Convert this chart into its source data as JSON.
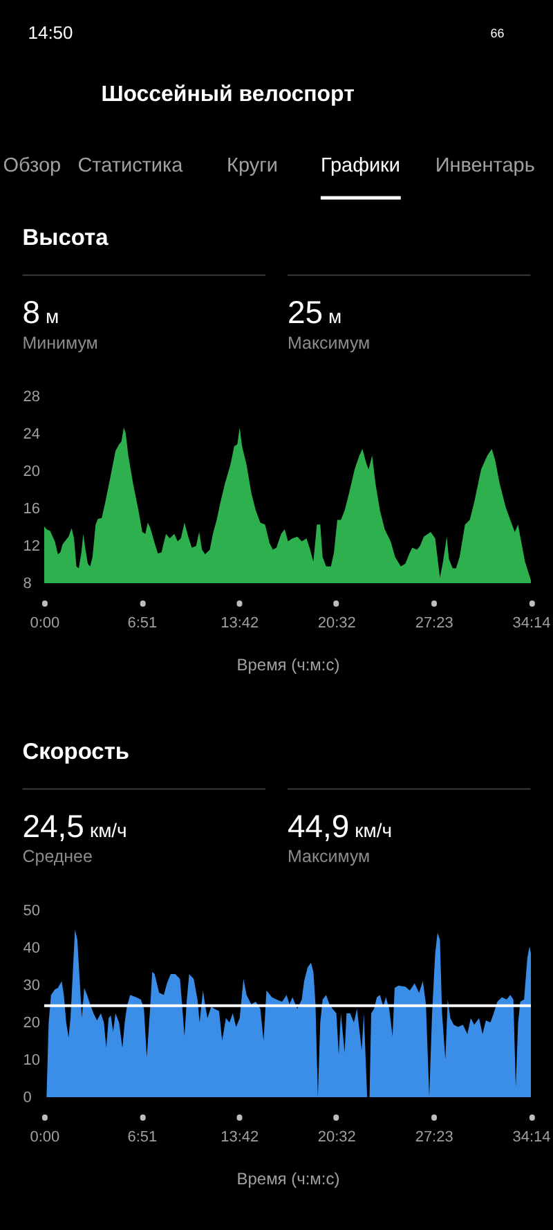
{
  "chart_data": [
    {
      "type": "area",
      "title": "Высота",
      "xlabel": "Время (ч:м:с)",
      "x": [
        0,
        10,
        25,
        45,
        58,
        68,
        78,
        103,
        116,
        126,
        136,
        146,
        157,
        165,
        173,
        184,
        194,
        204,
        217,
        227,
        243,
        258,
        278,
        301,
        316,
        326,
        336,
        344,
        355,
        375,
        398,
        414,
        427,
        437,
        447,
        466,
        480,
        495,
        514,
        530,
        549,
        563,
        577,
        592,
        608,
        623,
        641,
        654,
        666,
        679,
        699,
        712,
        728,
        744,
        763,
        786,
        802,
        815,
        825,
        835,
        854,
        874,
        893,
        912,
        932,
        951,
        965,
        980,
        1000,
        1015,
        1029,
        1048,
        1068,
        1087,
        1107,
        1120,
        1136,
        1151,
        1165,
        1175,
        1190,
        1210,
        1223,
        1237,
        1252,
        1268,
        1287,
        1310,
        1330,
        1343,
        1359,
        1369,
        1384,
        1398,
        1417,
        1437,
        1462,
        1481,
        1505,
        1524,
        1540,
        1553,
        1573,
        1586,
        1602,
        1631,
        1650,
        1670,
        1683,
        1699,
        1708,
        1724,
        1738,
        1753,
        1776,
        1796,
        1815,
        1844,
        1870,
        1889,
        1903,
        1922,
        1947,
        1971,
        1986,
        2000,
        2009,
        2029,
        2048,
        2054
      ],
      "series": [
        {
          "color": "#2eb04f",
          "values": [
            14.1,
            13.8,
            13.6,
            12.5,
            11.1,
            11.3,
            12.2,
            13.0,
            13.9,
            12.8,
            9.8,
            9.6,
            11.3,
            13.3,
            11.8,
            10.1,
            9.8,
            10.8,
            14.3,
            14.9,
            15.0,
            16.7,
            19.2,
            22.2,
            22.9,
            23.2,
            24.7,
            24.1,
            21.7,
            18.7,
            15.8,
            13.5,
            13.3,
            14.5,
            14.0,
            12.3,
            11.2,
            11.3,
            13.3,
            12.8,
            13.3,
            12.5,
            12.8,
            14.5,
            13.0,
            11.8,
            12.0,
            13.5,
            11.6,
            11.1,
            11.6,
            13.3,
            14.8,
            16.7,
            18.7,
            20.7,
            22.7,
            22.9,
            24.7,
            22.7,
            20.7,
            17.7,
            15.8,
            14.5,
            14.3,
            12.3,
            11.6,
            11.8,
            13.3,
            13.8,
            12.5,
            12.8,
            13.0,
            12.5,
            12.8,
            11.8,
            10.3,
            14.3,
            14.3,
            10.8,
            9.8,
            9.8,
            11.3,
            14.8,
            14.8,
            15.8,
            17.7,
            20.2,
            21.7,
            22.4,
            20.9,
            20.2,
            21.7,
            18.7,
            15.8,
            13.8,
            12.5,
            10.8,
            9.8,
            10.1,
            11.1,
            11.8,
            11.6,
            12.0,
            13.0,
            13.5,
            12.8,
            8.6,
            10.3,
            13.0,
            10.6,
            9.6,
            9.6,
            10.8,
            14.3,
            14.8,
            16.7,
            20.2,
            21.7,
            22.4,
            21.2,
            18.7,
            16.2,
            14.5,
            13.5,
            14.3,
            13.0,
            10.3,
            8.8,
            8.3
          ]
        }
      ],
      "xlim": [
        0,
        2054
      ],
      "xticks": [
        {
          "value": 0,
          "label": "0:00"
        },
        {
          "value": 411,
          "label": "6:51"
        },
        {
          "value": 822,
          "label": "13:42"
        },
        {
          "value": 1232,
          "label": "20:32"
        },
        {
          "value": 1643,
          "label": "27:23"
        },
        {
          "value": 2054,
          "label": "34:14"
        }
      ],
      "ylim": [
        8,
        28
      ],
      "yticks": [
        8,
        12,
        16,
        20,
        24,
        28
      ],
      "grid": false,
      "annotations": [
        "14:50",
        "66",
        "Шоссейный велоспорт",
        "Обзор",
        "Статистика",
        "Круги",
        "Графики",
        "Инвентарь",
        "8 м",
        "Минимум",
        "25 м",
        "Максимум"
      ]
    },
    {
      "type": "area",
      "title": "Скорость",
      "xlabel": "Время (ч:м:с)",
      "x": [
        10,
        19,
        29,
        45,
        58,
        74,
        83,
        93,
        103,
        111,
        120,
        130,
        140,
        149,
        159,
        169,
        181,
        194,
        208,
        223,
        239,
        252,
        262,
        272,
        281,
        291,
        301,
        316,
        330,
        340,
        349,
        363,
        388,
        408,
        421,
        433,
        447,
        456,
        466,
        485,
        505,
        518,
        534,
        553,
        573,
        582,
        592,
        602,
        612,
        631,
        647,
        656,
        670,
        679,
        689,
        705,
        718,
        738,
        751,
        767,
        782,
        796,
        810,
        825,
        841,
        854,
        874,
        893,
        912,
        926,
        938,
        961,
        980,
        1004,
        1023,
        1035,
        1048,
        1068,
        1087,
        1097,
        1112,
        1126,
        1136,
        1145,
        1155,
        1165,
        1175,
        1190,
        1204,
        1217,
        1233,
        1243,
        1252,
        1268,
        1276,
        1291,
        1307,
        1320,
        1340,
        1349,
        1363,
        1373,
        1380,
        1392,
        1404,
        1417,
        1431,
        1442,
        1456,
        1470,
        1479,
        1495,
        1524,
        1543,
        1563,
        1582,
        1598,
        1611,
        1625,
        1637,
        1650,
        1660,
        1670,
        1679,
        1693,
        1703,
        1714,
        1728,
        1747,
        1767,
        1786,
        1800,
        1815,
        1835,
        1850,
        1864,
        1883,
        1897,
        1912,
        1932,
        1951,
        1967,
        1980,
        1990,
        2000,
        2009,
        2025,
        2039,
        2048,
        2054
      ],
      "series": [
        {
          "color": "#3a8ee8",
          "values": [
            0,
            20.0,
            27.4,
            28.9,
            29.3,
            31.1,
            27.4,
            20.0,
            16.0,
            21.2,
            32.3,
            44.9,
            42.2,
            32.3,
            21.2,
            29.3,
            27.4,
            24.9,
            22.5,
            20.6,
            22.5,
            20.0,
            13.2,
            21.2,
            21.9,
            17.5,
            22.5,
            20.0,
            13.2,
            20.0,
            24.3,
            27.4,
            26.8,
            26.2,
            23.7,
            10.7,
            23.7,
            33.6,
            33.0,
            28.0,
            27.4,
            30.5,
            33.0,
            33.0,
            31.7,
            24.9,
            16.3,
            26.2,
            33.0,
            31.7,
            26.2,
            20.0,
            28.6,
            24.9,
            21.2,
            24.3,
            23.7,
            23.1,
            15.1,
            21.2,
            20.0,
            22.5,
            18.8,
            21.2,
            31.7,
            27.4,
            24.9,
            25.6,
            23.7,
            15.1,
            28.6,
            26.8,
            26.2,
            25.6,
            27.4,
            24.9,
            26.8,
            23.7,
            26.2,
            31.1,
            34.8,
            36.0,
            33.6,
            24.9,
            0,
            20.0,
            26.2,
            27.4,
            24.9,
            23.7,
            22.5,
            11.4,
            22.5,
            12.0,
            22.5,
            22.5,
            20.0,
            23.7,
            12.6,
            22.5,
            0,
            0,
            22.5,
            23.7,
            26.8,
            27.4,
            24.3,
            26.8,
            23.7,
            16.3,
            29.3,
            29.9,
            29.6,
            28.6,
            30.5,
            28.0,
            31.1,
            24.9,
            0,
            22.5,
            38.5,
            44.1,
            42.2,
            22.5,
            10.1,
            26.2,
            21.2,
            19.4,
            18.8,
            19.4,
            16.9,
            21.2,
            19.4,
            21.2,
            16.9,
            20.6,
            20.0,
            22.5,
            25.6,
            26.8,
            26.2,
            27.4,
            26.2,
            2.7,
            20.0,
            25.6,
            26.2,
            37.3,
            40.4,
            38.5
          ]
        }
      ],
      "xlim": [
        0,
        2054
      ],
      "xticks": [
        {
          "value": 0,
          "label": "0:00"
        },
        {
          "value": 411,
          "label": "6:51"
        },
        {
          "value": 822,
          "label": "13:42"
        },
        {
          "value": 1232,
          "label": "20:32"
        },
        {
          "value": 1643,
          "label": "27:23"
        },
        {
          "value": 2054,
          "label": "34:14"
        }
      ],
      "ylim": [
        0,
        50
      ],
      "yticks": [
        0,
        10,
        20,
        30,
        40,
        50
      ],
      "grid": false,
      "ref_lines": [
        {
          "axis": "y",
          "value": 24.5,
          "color": "#ffffff"
        }
      ],
      "annotations": [
        "24,5 км/ч",
        "Среднее",
        "44,9 км/ч",
        "Максимум"
      ]
    }
  ]
}
